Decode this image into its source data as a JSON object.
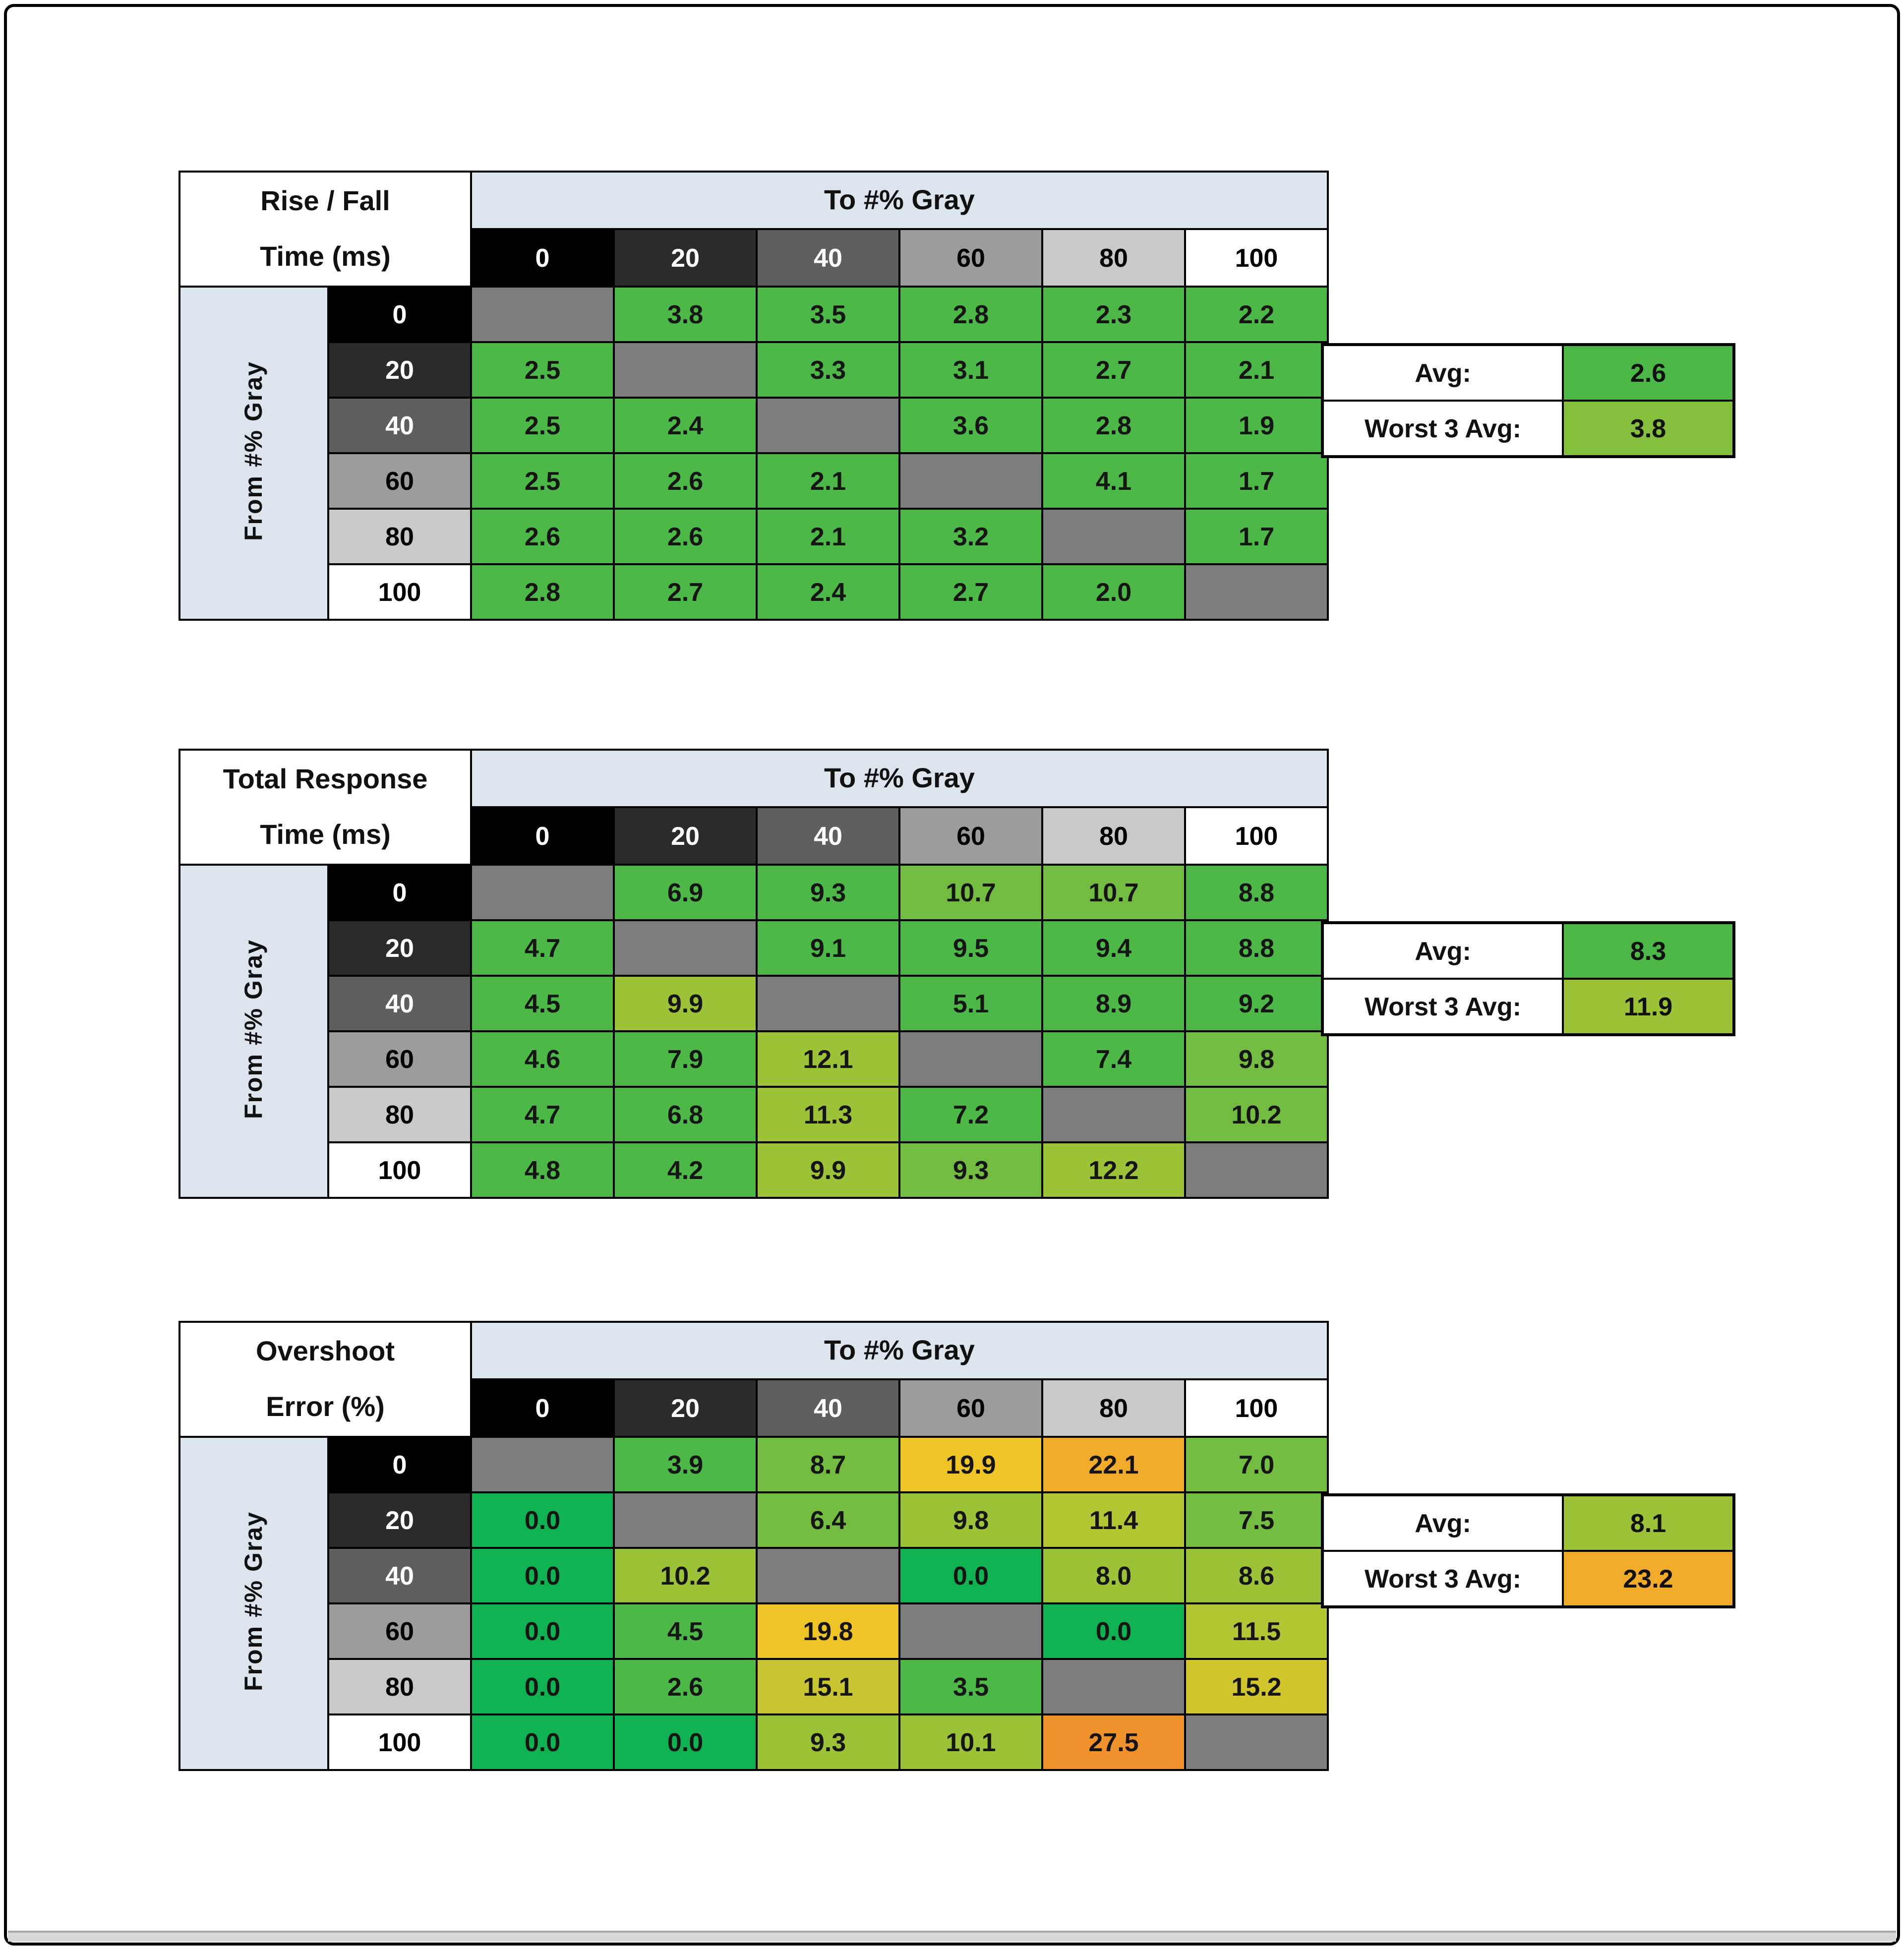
{
  "to_header": "To #% Gray",
  "from_header": "From #% Gray",
  "palette": {
    "header_blue": "#dce4ee",
    "diagonal_gray": "#7d7d7d",
    "border_black": "#000000",
    "bright_green": "#10b150",
    "green": "#4db848",
    "green_lime": "#73bc42",
    "lime": "#9cc338",
    "yellow_green": "#b4c634",
    "dark_yellow": "#d2c52d",
    "gold": "#eec426",
    "orange_yellow": "#f0ab2a",
    "orange": "#f0922b"
  },
  "gray_steps": [
    {
      "label": "0",
      "bg": "#000000",
      "fg": "#ffffff"
    },
    {
      "label": "20",
      "bg": "#2b2b2b",
      "fg": "#ffffff"
    },
    {
      "label": "40",
      "bg": "#5f5f5f",
      "fg": "#ffffff"
    },
    {
      "label": "60",
      "bg": "#9c9c9c",
      "fg": "#000000"
    },
    {
      "label": "80",
      "bg": "#c9c9c9",
      "fg": "#000000"
    },
    {
      "label": "100",
      "bg": "#ffffff",
      "fg": "#000000"
    }
  ],
  "tables": [
    {
      "title_line1": "Rise / Fall",
      "title_line2": "Time (ms)",
      "avg_label": "Avg:",
      "worst_label": "Worst 3 Avg:",
      "avg": {
        "v": "2.6",
        "c": "#4db848"
      },
      "worst": {
        "v": "3.8",
        "c": "#84c03e"
      },
      "rows": [
        [
          null,
          {
            "v": "3.8",
            "c": "#4db848"
          },
          {
            "v": "3.5",
            "c": "#4db848"
          },
          {
            "v": "2.8",
            "c": "#4db848"
          },
          {
            "v": "2.3",
            "c": "#4db848"
          },
          {
            "v": "2.2",
            "c": "#4db848"
          }
        ],
        [
          {
            "v": "2.5",
            "c": "#4db848"
          },
          null,
          {
            "v": "3.3",
            "c": "#4db848"
          },
          {
            "v": "3.1",
            "c": "#4db848"
          },
          {
            "v": "2.7",
            "c": "#4db848"
          },
          {
            "v": "2.1",
            "c": "#4db848"
          }
        ],
        [
          {
            "v": "2.5",
            "c": "#4db848"
          },
          {
            "v": "2.4",
            "c": "#4db848"
          },
          null,
          {
            "v": "3.6",
            "c": "#4db848"
          },
          {
            "v": "2.8",
            "c": "#4db848"
          },
          {
            "v": "1.9",
            "c": "#4db848"
          }
        ],
        [
          {
            "v": "2.5",
            "c": "#4db848"
          },
          {
            "v": "2.6",
            "c": "#4db848"
          },
          {
            "v": "2.1",
            "c": "#4db848"
          },
          null,
          {
            "v": "4.1",
            "c": "#4db848"
          },
          {
            "v": "1.7",
            "c": "#4db848"
          }
        ],
        [
          {
            "v": "2.6",
            "c": "#4db848"
          },
          {
            "v": "2.6",
            "c": "#4db848"
          },
          {
            "v": "2.1",
            "c": "#4db848"
          },
          {
            "v": "3.2",
            "c": "#4db848"
          },
          null,
          {
            "v": "1.7",
            "c": "#4db848"
          }
        ],
        [
          {
            "v": "2.8",
            "c": "#4db848"
          },
          {
            "v": "2.7",
            "c": "#4db848"
          },
          {
            "v": "2.4",
            "c": "#4db848"
          },
          {
            "v": "2.7",
            "c": "#4db848"
          },
          {
            "v": "2.0",
            "c": "#4db848"
          },
          null
        ]
      ]
    },
    {
      "title_line1": "Total Response",
      "title_line2": "Time (ms)",
      "avg_label": "Avg:",
      "worst_label": "Worst 3 Avg:",
      "avg": {
        "v": "8.3",
        "c": "#4db848"
      },
      "worst": {
        "v": "11.9",
        "c": "#9cc338"
      },
      "rows": [
        [
          null,
          {
            "v": "6.9",
            "c": "#4db848"
          },
          {
            "v": "9.3",
            "c": "#4db848"
          },
          {
            "v": "10.7",
            "c": "#73bc42"
          },
          {
            "v": "10.7",
            "c": "#73bc42"
          },
          {
            "v": "8.8",
            "c": "#4db848"
          }
        ],
        [
          {
            "v": "4.7",
            "c": "#4db848"
          },
          null,
          {
            "v": "9.1",
            "c": "#4db848"
          },
          {
            "v": "9.5",
            "c": "#4db848"
          },
          {
            "v": "9.4",
            "c": "#4db848"
          },
          {
            "v": "8.8",
            "c": "#4db848"
          }
        ],
        [
          {
            "v": "4.5",
            "c": "#4db848"
          },
          {
            "v": "9.9",
            "c": "#9cc338"
          },
          null,
          {
            "v": "5.1",
            "c": "#4db848"
          },
          {
            "v": "8.9",
            "c": "#4db848"
          },
          {
            "v": "9.2",
            "c": "#4db848"
          }
        ],
        [
          {
            "v": "4.6",
            "c": "#4db848"
          },
          {
            "v": "7.9",
            "c": "#4db848"
          },
          {
            "v": "12.1",
            "c": "#9cc338"
          },
          null,
          {
            "v": "7.4",
            "c": "#4db848"
          },
          {
            "v": "9.8",
            "c": "#73bc42"
          }
        ],
        [
          {
            "v": "4.7",
            "c": "#4db848"
          },
          {
            "v": "6.8",
            "c": "#4db848"
          },
          {
            "v": "11.3",
            "c": "#9cc338"
          },
          {
            "v": "7.2",
            "c": "#4db848"
          },
          null,
          {
            "v": "10.2",
            "c": "#73bc42"
          }
        ],
        [
          {
            "v": "4.8",
            "c": "#4db848"
          },
          {
            "v": "4.2",
            "c": "#4db848"
          },
          {
            "v": "9.9",
            "c": "#9cc338"
          },
          {
            "v": "9.3",
            "c": "#73bc42"
          },
          {
            "v": "12.2",
            "c": "#9cc338"
          },
          null
        ]
      ]
    },
    {
      "title_line1": "Overshoot",
      "title_line2": "Error (%)",
      "avg_label": "Avg:",
      "worst_label": "Worst 3 Avg:",
      "avg": {
        "v": "8.1",
        "c": "#9cc338"
      },
      "worst": {
        "v": "23.2",
        "c": "#f0ab2a"
      },
      "rows": [
        [
          null,
          {
            "v": "3.9",
            "c": "#4db848"
          },
          {
            "v": "8.7",
            "c": "#73bc42"
          },
          {
            "v": "19.9",
            "c": "#eec426"
          },
          {
            "v": "22.1",
            "c": "#f0ab2a"
          },
          {
            "v": "7.0",
            "c": "#73bc42"
          }
        ],
        [
          {
            "v": "0.0",
            "c": "#10b150"
          },
          null,
          {
            "v": "6.4",
            "c": "#73bc42"
          },
          {
            "v": "9.8",
            "c": "#9cc338"
          },
          {
            "v": "11.4",
            "c": "#b4c634"
          },
          {
            "v": "7.5",
            "c": "#73bc42"
          }
        ],
        [
          {
            "v": "0.0",
            "c": "#10b150"
          },
          {
            "v": "10.2",
            "c": "#9cc338"
          },
          null,
          {
            "v": "0.0",
            "c": "#10b150"
          },
          {
            "v": "8.0",
            "c": "#9cc338"
          },
          {
            "v": "8.6",
            "c": "#9cc338"
          }
        ],
        [
          {
            "v": "0.0",
            "c": "#10b150"
          },
          {
            "v": "4.5",
            "c": "#4db848"
          },
          {
            "v": "19.8",
            "c": "#eec426"
          },
          null,
          {
            "v": "0.0",
            "c": "#10b150"
          },
          {
            "v": "11.5",
            "c": "#b4c634"
          }
        ],
        [
          {
            "v": "0.0",
            "c": "#10b150"
          },
          {
            "v": "2.6",
            "c": "#4db848"
          },
          {
            "v": "15.1",
            "c": "#c9c431"
          },
          {
            "v": "3.5",
            "c": "#4db848"
          },
          null,
          {
            "v": "15.2",
            "c": "#d2c52d"
          }
        ],
        [
          {
            "v": "0.0",
            "c": "#10b150"
          },
          {
            "v": "0.0",
            "c": "#10b150"
          },
          {
            "v": "9.3",
            "c": "#9cc338"
          },
          {
            "v": "10.1",
            "c": "#9cc338"
          },
          {
            "v": "27.5",
            "c": "#f0922b"
          },
          null
        ]
      ]
    }
  ],
  "chart_data": [
    {
      "type": "heatmap",
      "title": "Rise / Fall Time (ms)",
      "xlabel": "To #% Gray",
      "ylabel": "From #% Gray",
      "x_categories": [
        0,
        20,
        40,
        60,
        80,
        100
      ],
      "y_categories": [
        0,
        20,
        40,
        60,
        80,
        100
      ],
      "values": [
        [
          null,
          3.8,
          3.5,
          2.8,
          2.3,
          2.2
        ],
        [
          2.5,
          null,
          3.3,
          3.1,
          2.7,
          2.1
        ],
        [
          2.5,
          2.4,
          null,
          3.6,
          2.8,
          1.9
        ],
        [
          2.5,
          2.6,
          2.1,
          null,
          4.1,
          1.7
        ],
        [
          2.6,
          2.6,
          2.1,
          3.2,
          null,
          1.7
        ],
        [
          2.8,
          2.7,
          2.4,
          2.7,
          2.0,
          null
        ]
      ],
      "avg": 2.6,
      "worst_3_avg": 3.8
    },
    {
      "type": "heatmap",
      "title": "Total Response Time (ms)",
      "xlabel": "To #% Gray",
      "ylabel": "From #% Gray",
      "x_categories": [
        0,
        20,
        40,
        60,
        80,
        100
      ],
      "y_categories": [
        0,
        20,
        40,
        60,
        80,
        100
      ],
      "values": [
        [
          null,
          6.9,
          9.3,
          10.7,
          10.7,
          8.8
        ],
        [
          4.7,
          null,
          9.1,
          9.5,
          9.4,
          8.8
        ],
        [
          4.5,
          9.9,
          null,
          5.1,
          8.9,
          9.2
        ],
        [
          4.6,
          7.9,
          12.1,
          null,
          7.4,
          9.8
        ],
        [
          4.7,
          6.8,
          11.3,
          7.2,
          null,
          10.2
        ],
        [
          4.8,
          4.2,
          9.9,
          9.3,
          12.2,
          null
        ]
      ],
      "avg": 8.3,
      "worst_3_avg": 11.9
    },
    {
      "type": "heatmap",
      "title": "Overshoot Error (%)",
      "xlabel": "To #% Gray",
      "ylabel": "From #% Gray",
      "x_categories": [
        0,
        20,
        40,
        60,
        80,
        100
      ],
      "y_categories": [
        0,
        20,
        40,
        60,
        80,
        100
      ],
      "values": [
        [
          null,
          3.9,
          8.7,
          19.9,
          22.1,
          7.0
        ],
        [
          0.0,
          null,
          6.4,
          9.8,
          11.4,
          7.5
        ],
        [
          0.0,
          10.2,
          null,
          0.0,
          8.0,
          8.6
        ],
        [
          0.0,
          4.5,
          19.8,
          null,
          0.0,
          11.5
        ],
        [
          0.0,
          2.6,
          15.1,
          3.5,
          null,
          15.2
        ],
        [
          0.0,
          0.0,
          9.3,
          10.1,
          27.5,
          null
        ]
      ],
      "avg": 8.1,
      "worst_3_avg": 23.2
    }
  ]
}
